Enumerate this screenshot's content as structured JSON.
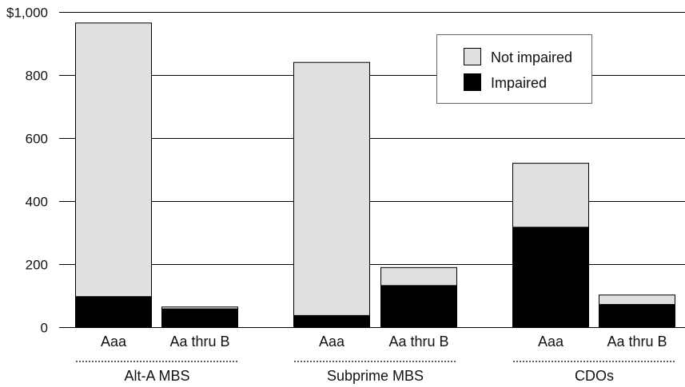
{
  "chart_data": {
    "type": "bar",
    "stacked": true,
    "y_tick_labels": [
      "0",
      "200",
      "400",
      "600",
      "800",
      "$1,000"
    ],
    "y_ticks": [
      0,
      200,
      400,
      600,
      800,
      1000
    ],
    "ylim": [
      0,
      1000
    ],
    "grid": true,
    "groups": [
      "Alt-A MBS",
      "Subprime MBS",
      "CDOs"
    ],
    "categories": [
      "Aaa",
      "Aa thru B",
      "Aaa",
      "Aa thru B",
      "Aaa",
      "Aa thru B"
    ],
    "category_group": [
      0,
      0,
      1,
      1,
      2,
      2
    ],
    "series": [
      {
        "name": "Impaired",
        "color": "#000000",
        "values": [
          97,
          58,
          37,
          132,
          317,
          72
        ]
      },
      {
        "name": "Not impaired",
        "color": "#e0e0e0",
        "values": [
          868,
          6,
          803,
          57,
          203,
          30
        ]
      }
    ],
    "legend_order": [
      1,
      0
    ],
    "legend_position": "top-right"
  }
}
